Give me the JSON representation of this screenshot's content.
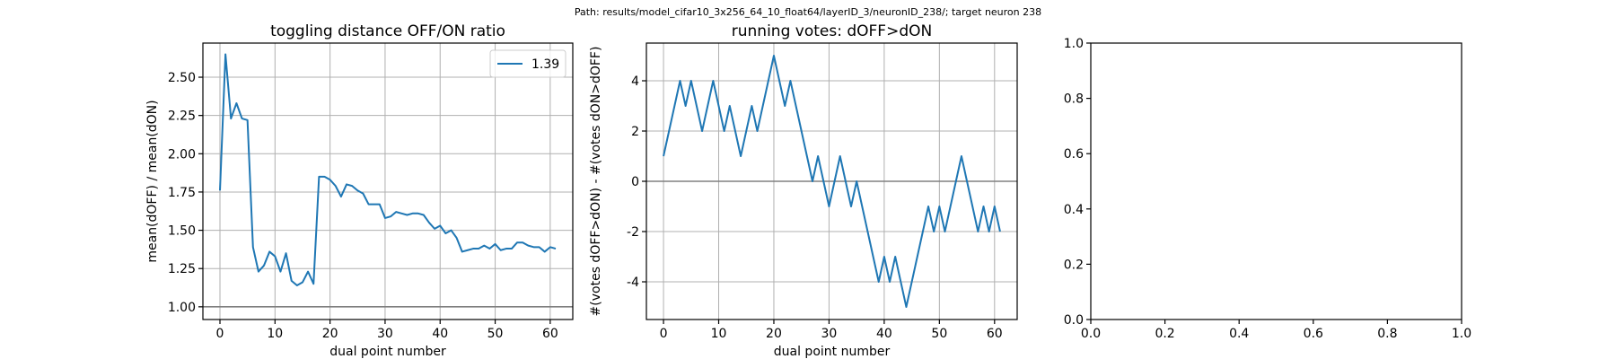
{
  "figure": {
    "suptitle": "Path: results/model_cifar10_3x256_64_10_float64/layerID_3/neuronID_238/; target neuron 238"
  },
  "colors": {
    "series": "#1f77b4",
    "grid": "#b0b0b0",
    "reference": "#808080",
    "axes": "#000000"
  },
  "chart_data": [
    {
      "type": "line",
      "title": "toggling distance OFF/ON ratio",
      "xlabel": "dual point number",
      "ylabel": "mean(dOFF) / mean(dON)",
      "xlim": [
        -3.1,
        64.1
      ],
      "ylim": [
        0.917,
        2.723
      ],
      "xticks": [
        0,
        10,
        20,
        30,
        40,
        50,
        60
      ],
      "yticks": [
        1.0,
        1.25,
        1.5,
        1.75,
        2.0,
        2.25,
        2.5
      ],
      "ytick_decimals": 2,
      "grid": true,
      "reference_line": 1.0,
      "legend": {
        "placement": "upper-right",
        "entries": [
          "1.39"
        ]
      },
      "series": [
        {
          "name": "1.39",
          "x": [
            0,
            1,
            2,
            3,
            4,
            5,
            6,
            7,
            8,
            9,
            10,
            11,
            12,
            13,
            14,
            15,
            16,
            17,
            18,
            19,
            20,
            21,
            22,
            23,
            24,
            25,
            26,
            27,
            28,
            29,
            30,
            31,
            32,
            33,
            34,
            35,
            36,
            37,
            38,
            39,
            40,
            41,
            42,
            43,
            44,
            45,
            46,
            47,
            48,
            49,
            50,
            51,
            52,
            53,
            54,
            55,
            56,
            57,
            58,
            59,
            60,
            61
          ],
          "y": [
            1.76,
            2.65,
            2.23,
            2.33,
            2.23,
            2.22,
            1.39,
            1.23,
            1.27,
            1.36,
            1.33,
            1.23,
            1.35,
            1.17,
            1.14,
            1.16,
            1.23,
            1.15,
            1.85,
            1.85,
            1.83,
            1.79,
            1.72,
            1.8,
            1.79,
            1.76,
            1.74,
            1.67,
            1.67,
            1.67,
            1.58,
            1.59,
            1.62,
            1.61,
            1.6,
            1.61,
            1.61,
            1.6,
            1.55,
            1.51,
            1.53,
            1.48,
            1.5,
            1.45,
            1.36,
            1.37,
            1.38,
            1.38,
            1.4,
            1.38,
            1.41,
            1.37,
            1.38,
            1.38,
            1.42,
            1.42,
            1.4,
            1.39,
            1.39,
            1.36,
            1.39,
            1.38
          ]
        }
      ]
    },
    {
      "type": "line",
      "title": "running votes: dOFF>dON",
      "xlabel": "dual point number",
      "ylabel": "#(votes dOFF>dON) - #(votes dON>dOFF)",
      "xlim": [
        -3.1,
        64.1
      ],
      "ylim": [
        -5.5,
        5.5
      ],
      "xticks": [
        0,
        10,
        20,
        30,
        40,
        50,
        60
      ],
      "yticks": [
        -4,
        -2,
        0,
        2,
        4
      ],
      "ytick_decimals": 0,
      "grid": true,
      "reference_line": 0,
      "legend": null,
      "series": [
        {
          "x": [
            0,
            1,
            2,
            3,
            4,
            5,
            6,
            7,
            8,
            9,
            10,
            11,
            12,
            13,
            14,
            15,
            16,
            17,
            18,
            19,
            20,
            21,
            22,
            23,
            24,
            25,
            26,
            27,
            28,
            29,
            30,
            31,
            32,
            33,
            34,
            35,
            36,
            37,
            38,
            39,
            40,
            41,
            42,
            43,
            44,
            45,
            46,
            47,
            48,
            49,
            50,
            51,
            52,
            53,
            54,
            55,
            56,
            57,
            58,
            59,
            60,
            61
          ],
          "y": [
            1,
            2,
            3,
            4,
            3,
            4,
            3,
            2,
            3,
            4,
            3,
            2,
            3,
            2,
            1,
            2,
            3,
            2,
            3,
            4,
            5,
            4,
            3,
            4,
            3,
            2,
            1,
            0,
            1,
            0,
            -1,
            0,
            1,
            0,
            -1,
            0,
            -1,
            -2,
            -3,
            -4,
            -3,
            -4,
            -3,
            -4,
            -5,
            -4,
            -3,
            -2,
            -1,
            -2,
            -1,
            -2,
            -1,
            0,
            1,
            0,
            -1,
            -2,
            -1,
            -2,
            -1,
            -2
          ]
        }
      ]
    },
    {
      "type": "line",
      "title": "",
      "xlabel": "",
      "ylabel": "",
      "xlim": [
        0,
        1
      ],
      "ylim": [
        0,
        1
      ],
      "xticks": [
        0.0,
        0.2,
        0.4,
        0.6,
        0.8,
        1.0
      ],
      "yticks": [
        0.0,
        0.2,
        0.4,
        0.6,
        0.8,
        1.0
      ],
      "xtick_decimals": 1,
      "ytick_decimals": 1,
      "grid": false,
      "reference_line": null,
      "legend": null,
      "series": []
    }
  ]
}
